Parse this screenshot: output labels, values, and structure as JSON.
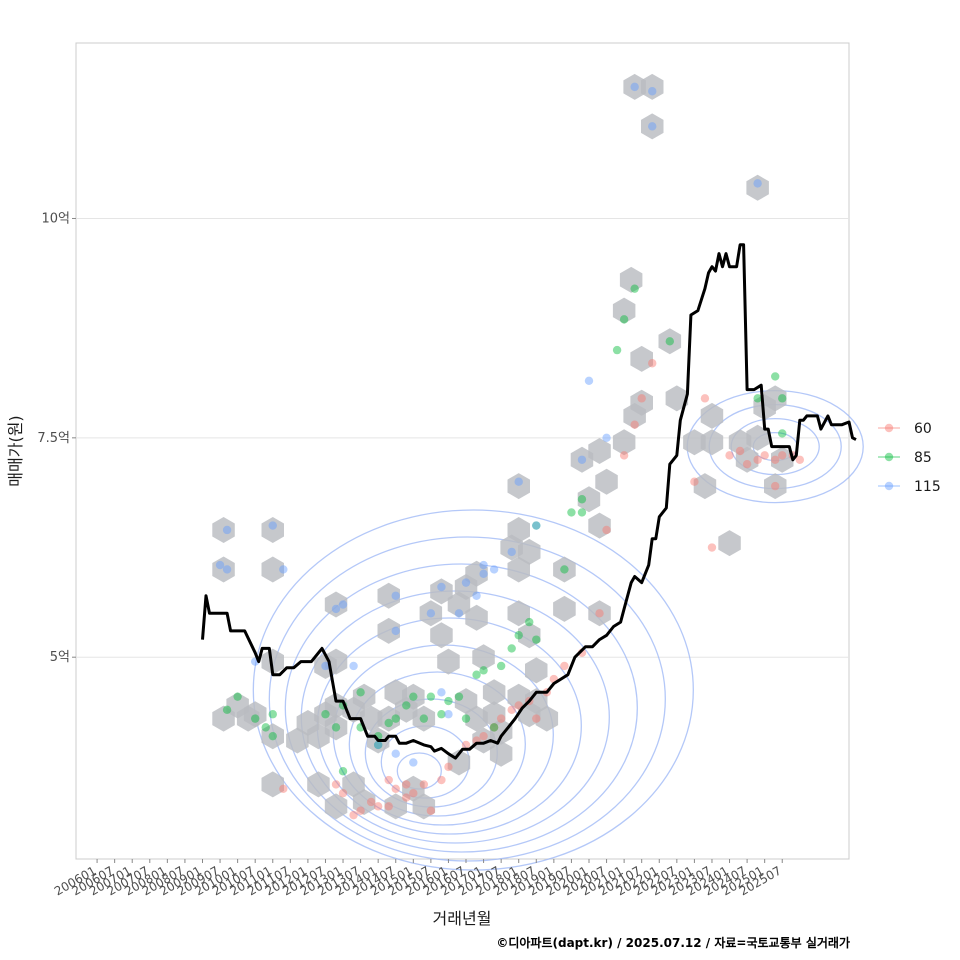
{
  "chart_data": {
    "type": "scatter",
    "title": "",
    "xlabel": "거래년월",
    "ylabel": "매매가(원)",
    "xticks": [
      "200601",
      "200607",
      "200701",
      "200707",
      "200801",
      "200807",
      "200901",
      "200907",
      "201001",
      "201007",
      "201101",
      "201107",
      "201201",
      "201207",
      "201301",
      "201307",
      "201401",
      "201407",
      "201501",
      "201507",
      "201601",
      "201607",
      "201701",
      "201707",
      "201801",
      "201807",
      "201901",
      "201907",
      "202001",
      "202007",
      "202101",
      "202107",
      "202201",
      "202207",
      "202301",
      "202307",
      "202401",
      "202407",
      "202501",
      "202507"
    ],
    "yticks": [
      {
        "value": 5,
        "label": "5억"
      },
      {
        "value": 7.5,
        "label": "7.5억"
      },
      {
        "value": 10,
        "label": "10억"
      }
    ],
    "xlim": [
      2005.4,
      2027.4
    ],
    "ylim": [
      2.7,
      12.0
    ],
    "grid": true,
    "legend_position": "right",
    "legend": [
      {
        "name": "60",
        "color": "#F8766D"
      },
      {
        "name": "85",
        "color": "#00BA38"
      },
      {
        "name": "115",
        "color": "#619CFF"
      }
    ],
    "hexbins": [
      [
        2009.6,
        6.45
      ],
      [
        2009.6,
        6.0
      ],
      [
        2009.6,
        4.3
      ],
      [
        2010.0,
        4.45
      ],
      [
        2010.3,
        4.3
      ],
      [
        2010.5,
        4.35
      ],
      [
        2011.0,
        6.45
      ],
      [
        2011.0,
        6.0
      ],
      [
        2011.0,
        4.95
      ],
      [
        2011.0,
        4.1
      ],
      [
        2011.0,
        3.55
      ],
      [
        2011.7,
        4.05
      ],
      [
        2012.0,
        4.25
      ],
      [
        2012.3,
        4.1
      ],
      [
        2012.5,
        4.35
      ],
      [
        2012.8,
        5.6
      ],
      [
        2012.8,
        4.95
      ],
      [
        2012.5,
        4.9
      ],
      [
        2012.8,
        4.45
      ],
      [
        2012.8,
        4.2
      ],
      [
        2012.3,
        3.55
      ],
      [
        2013.3,
        4.4
      ],
      [
        2013.6,
        4.55
      ],
      [
        2013.8,
        4.3
      ],
      [
        2013.3,
        3.55
      ],
      [
        2013.6,
        3.35
      ],
      [
        2012.8,
        3.3
      ],
      [
        2014.0,
        4.05
      ],
      [
        2014.3,
        4.3
      ],
      [
        2014.3,
        5.7
      ],
      [
        2014.3,
        5.3
      ],
      [
        2014.5,
        4.6
      ],
      [
        2014.8,
        4.4
      ],
      [
        2015.0,
        4.55
      ],
      [
        2015.3,
        4.3
      ],
      [
        2015.0,
        3.5
      ],
      [
        2015.3,
        3.3
      ],
      [
        2014.5,
        3.3
      ],
      [
        2015.5,
        5.5
      ],
      [
        2015.8,
        5.75
      ],
      [
        2015.8,
        5.25
      ],
      [
        2016.0,
        4.95
      ],
      [
        2016.3,
        5.6
      ],
      [
        2016.5,
        5.8
      ],
      [
        2016.8,
        5.95
      ],
      [
        2016.8,
        5.45
      ],
      [
        2017.0,
        5.0
      ],
      [
        2016.5,
        4.5
      ],
      [
        2016.8,
        4.3
      ],
      [
        2016.3,
        3.8
      ],
      [
        2017.3,
        4.6
      ],
      [
        2017.3,
        4.35
      ],
      [
        2017.5,
        4.15
      ],
      [
        2017.0,
        4.05
      ],
      [
        2017.5,
        3.9
      ],
      [
        2017.8,
        6.25
      ],
      [
        2018.0,
        6.45
      ],
      [
        2018.0,
        6.0
      ],
      [
        2018.3,
        6.2
      ],
      [
        2018.0,
        5.5
      ],
      [
        2018.3,
        5.25
      ],
      [
        2018.5,
        4.85
      ],
      [
        2018.0,
        4.55
      ],
      [
        2018.3,
        4.35
      ],
      [
        2018.5,
        4.5
      ],
      [
        2018.8,
        4.3
      ],
      [
        2018.0,
        6.95
      ],
      [
        2019.3,
        6.0
      ],
      [
        2019.3,
        5.55
      ],
      [
        2019.8,
        7.25
      ],
      [
        2020.0,
        6.8
      ],
      [
        2020.3,
        7.35
      ],
      [
        2020.5,
        7.0
      ],
      [
        2020.3,
        6.5
      ],
      [
        2020.3,
        5.5
      ],
      [
        2021.0,
        7.45
      ],
      [
        2021.3,
        7.75
      ],
      [
        2021.5,
        7.9
      ],
      [
        2021.5,
        8.4
      ],
      [
        2021.0,
        8.95
      ],
      [
        2021.2,
        9.3
      ],
      [
        2021.3,
        11.5
      ],
      [
        2021.8,
        11.5
      ],
      [
        2021.8,
        11.05
      ],
      [
        2022.3,
        8.6
      ],
      [
        2022.5,
        7.95
      ],
      [
        2023.0,
        7.45
      ],
      [
        2023.5,
        7.45
      ],
      [
        2023.3,
        6.95
      ],
      [
        2024.0,
        6.3
      ],
      [
        2024.3,
        7.45
      ],
      [
        2024.5,
        7.25
      ],
      [
        2024.8,
        10.35
      ],
      [
        2024.8,
        7.5
      ],
      [
        2025.0,
        7.85
      ],
      [
        2025.3,
        7.95
      ],
      [
        2025.5,
        7.25
      ],
      [
        2025.3,
        6.95
      ],
      [
        2023.5,
        7.75
      ]
    ],
    "series": [
      {
        "name": "60",
        "color": "#F8766D",
        "points": [
          [
            2011.3,
            3.5
          ],
          [
            2012.8,
            3.55
          ],
          [
            2013.0,
            3.45
          ],
          [
            2013.3,
            3.2
          ],
          [
            2013.5,
            3.25
          ],
          [
            2013.8,
            3.35
          ],
          [
            2014.0,
            3.3
          ],
          [
            2014.3,
            3.3
          ],
          [
            2014.5,
            3.5
          ],
          [
            2014.8,
            3.55
          ],
          [
            2015.0,
            3.45
          ],
          [
            2015.3,
            3.55
          ],
          [
            2015.5,
            3.25
          ],
          [
            2015.8,
            3.6
          ],
          [
            2016.0,
            3.75
          ],
          [
            2014.3,
            3.6
          ],
          [
            2014.8,
            3.4
          ],
          [
            2016.5,
            4.0
          ],
          [
            2016.8,
            4.05
          ],
          [
            2017.0,
            4.1
          ],
          [
            2017.3,
            4.2
          ],
          [
            2017.5,
            4.3
          ],
          [
            2017.8,
            4.4
          ],
          [
            2018.0,
            4.45
          ],
          [
            2018.3,
            4.5
          ],
          [
            2018.5,
            4.3
          ],
          [
            2018.8,
            4.6
          ],
          [
            2019.0,
            4.75
          ],
          [
            2019.3,
            4.9
          ],
          [
            2019.8,
            5.05
          ],
          [
            2020.3,
            5.5
          ],
          [
            2020.5,
            6.45
          ],
          [
            2021.0,
            7.3
          ],
          [
            2021.3,
            7.65
          ],
          [
            2021.5,
            7.95
          ],
          [
            2021.8,
            8.35
          ],
          [
            2023.0,
            7.0
          ],
          [
            2023.3,
            7.95
          ],
          [
            2023.5,
            6.25
          ],
          [
            2024.3,
            7.35
          ],
          [
            2024.5,
            7.2
          ],
          [
            2024.8,
            7.25
          ],
          [
            2025.0,
            7.3
          ],
          [
            2025.3,
            7.25
          ],
          [
            2025.5,
            7.3
          ],
          [
            2025.8,
            7.3
          ],
          [
            2026.0,
            7.25
          ],
          [
            2025.3,
            6.95
          ],
          [
            2024.0,
            7.3
          ]
        ]
      },
      {
        "name": "85",
        "color": "#00BA38",
        "points": [
          [
            2009.7,
            4.4
          ],
          [
            2010.0,
            4.55
          ],
          [
            2010.5,
            4.3
          ],
          [
            2010.8,
            4.2
          ],
          [
            2011.0,
            4.1
          ],
          [
            2011.0,
            4.35
          ],
          [
            2012.5,
            4.35
          ],
          [
            2012.8,
            4.2
          ],
          [
            2013.0,
            4.45
          ],
          [
            2013.5,
            4.2
          ],
          [
            2013.5,
            4.6
          ],
          [
            2014.0,
            4.0
          ],
          [
            2014.3,
            4.25
          ],
          [
            2014.5,
            4.3
          ],
          [
            2014.8,
            4.45
          ],
          [
            2015.0,
            4.55
          ],
          [
            2015.3,
            4.3
          ],
          [
            2015.5,
            4.55
          ],
          [
            2015.8,
            4.35
          ],
          [
            2016.0,
            4.5
          ],
          [
            2016.3,
            4.55
          ],
          [
            2016.5,
            4.3
          ],
          [
            2016.8,
            4.8
          ],
          [
            2017.0,
            4.85
          ],
          [
            2017.3,
            4.2
          ],
          [
            2017.5,
            4.9
          ],
          [
            2017.8,
            5.1
          ],
          [
            2018.0,
            5.25
          ],
          [
            2018.3,
            5.4
          ],
          [
            2018.5,
            5.2
          ],
          [
            2018.5,
            6.5
          ],
          [
            2019.3,
            6.0
          ],
          [
            2019.5,
            6.65
          ],
          [
            2019.8,
            6.8
          ],
          [
            2019.8,
            6.65
          ],
          [
            2020.8,
            8.5
          ],
          [
            2021.0,
            8.85
          ],
          [
            2021.3,
            9.2
          ],
          [
            2022.3,
            8.6
          ],
          [
            2024.8,
            7.95
          ],
          [
            2025.3,
            8.2
          ],
          [
            2025.5,
            7.95
          ],
          [
            2025.5,
            7.55
          ],
          [
            2013.0,
            3.7
          ],
          [
            2014.0,
            4.1
          ]
        ]
      },
      {
        "name": "115",
        "color": "#619CFF",
        "points": [
          [
            2009.5,
            6.05
          ],
          [
            2009.7,
            6.45
          ],
          [
            2009.7,
            6.0
          ],
          [
            2010.5,
            4.95
          ],
          [
            2011.0,
            6.5
          ],
          [
            2011.3,
            6.0
          ],
          [
            2012.5,
            4.9
          ],
          [
            2012.8,
            5.55
          ],
          [
            2013.0,
            5.6
          ],
          [
            2013.3,
            4.9
          ],
          [
            2014.0,
            4.0
          ],
          [
            2014.5,
            5.7
          ],
          [
            2014.5,
            5.3
          ],
          [
            2015.5,
            5.5
          ],
          [
            2015.8,
            5.8
          ],
          [
            2016.3,
            5.5
          ],
          [
            2016.5,
            5.85
          ],
          [
            2016.8,
            5.7
          ],
          [
            2017.0,
            5.95
          ],
          [
            2017.0,
            6.05
          ],
          [
            2017.3,
            6.0
          ],
          [
            2017.8,
            6.2
          ],
          [
            2018.0,
            7.0
          ],
          [
            2018.5,
            6.5
          ],
          [
            2019.8,
            7.25
          ],
          [
            2020.0,
            8.15
          ],
          [
            2020.5,
            7.5
          ],
          [
            2021.3,
            11.5
          ],
          [
            2021.8,
            11.45
          ],
          [
            2021.8,
            11.05
          ],
          [
            2024.8,
            10.4
          ],
          [
            2014.5,
            3.9
          ],
          [
            2015.0,
            3.8
          ],
          [
            2015.8,
            4.6
          ],
          [
            2016.0,
            4.35
          ]
        ]
      }
    ],
    "median_line": [
      [
        2009.0,
        5.2
      ],
      [
        2009.1,
        5.7
      ],
      [
        2009.2,
        5.5
      ],
      [
        2009.7,
        5.5
      ],
      [
        2009.8,
        5.3
      ],
      [
        2010.2,
        5.3
      ],
      [
        2010.5,
        5.05
      ],
      [
        2010.6,
        4.95
      ],
      [
        2010.7,
        5.1
      ],
      [
        2010.9,
        5.1
      ],
      [
        2011.0,
        4.8
      ],
      [
        2011.2,
        4.8
      ],
      [
        2011.4,
        4.88
      ],
      [
        2011.6,
        4.88
      ],
      [
        2011.8,
        4.95
      ],
      [
        2012.1,
        4.95
      ],
      [
        2012.4,
        5.1
      ],
      [
        2012.6,
        4.95
      ],
      [
        2012.8,
        4.5
      ],
      [
        2013.0,
        4.5
      ],
      [
        2013.2,
        4.3
      ],
      [
        2013.5,
        4.3
      ],
      [
        2013.7,
        4.1
      ],
      [
        2013.9,
        4.1
      ],
      [
        2014.0,
        4.05
      ],
      [
        2014.2,
        4.05
      ],
      [
        2014.3,
        4.1
      ],
      [
        2014.5,
        4.1
      ],
      [
        2014.6,
        4.02
      ],
      [
        2014.8,
        4.02
      ],
      [
        2015.0,
        4.05
      ],
      [
        2015.3,
        4.0
      ],
      [
        2015.5,
        3.98
      ],
      [
        2015.6,
        3.93
      ],
      [
        2015.8,
        3.96
      ],
      [
        2016.0,
        3.9
      ],
      [
        2016.2,
        3.85
      ],
      [
        2016.4,
        3.95
      ],
      [
        2016.6,
        3.95
      ],
      [
        2016.8,
        4.02
      ],
      [
        2017.0,
        4.02
      ],
      [
        2017.2,
        4.05
      ],
      [
        2017.4,
        4.02
      ],
      [
        2017.5,
        4.1
      ],
      [
        2017.7,
        4.2
      ],
      [
        2017.9,
        4.3
      ],
      [
        2018.1,
        4.42
      ],
      [
        2018.3,
        4.5
      ],
      [
        2018.5,
        4.6
      ],
      [
        2018.8,
        4.6
      ],
      [
        2019.0,
        4.7
      ],
      [
        2019.2,
        4.75
      ],
      [
        2019.4,
        4.8
      ],
      [
        2019.6,
        5.0
      ],
      [
        2019.9,
        5.12
      ],
      [
        2020.1,
        5.12
      ],
      [
        2020.3,
        5.2
      ],
      [
        2020.5,
        5.25
      ],
      [
        2020.7,
        5.35
      ],
      [
        2020.9,
        5.4
      ],
      [
        2021.0,
        5.55
      ],
      [
        2021.2,
        5.85
      ],
      [
        2021.3,
        5.92
      ],
      [
        2021.5,
        5.85
      ],
      [
        2021.7,
        6.05
      ],
      [
        2021.8,
        6.35
      ],
      [
        2021.9,
        6.35
      ],
      [
        2022.0,
        6.6
      ],
      [
        2022.2,
        6.7
      ],
      [
        2022.3,
        7.2
      ],
      [
        2022.5,
        7.3
      ],
      [
        2022.6,
        7.7
      ],
      [
        2022.8,
        8.0
      ],
      [
        2022.9,
        8.9
      ],
      [
        2023.1,
        8.95
      ],
      [
        2023.3,
        9.2
      ],
      [
        2023.4,
        9.38
      ],
      [
        2023.5,
        9.45
      ],
      [
        2023.6,
        9.4
      ],
      [
        2023.7,
        9.6
      ],
      [
        2023.8,
        9.45
      ],
      [
        2023.9,
        9.6
      ],
      [
        2024.0,
        9.45
      ],
      [
        2024.2,
        9.45
      ],
      [
        2024.3,
        9.7
      ],
      [
        2024.4,
        9.7
      ],
      [
        2024.5,
        8.05
      ],
      [
        2024.7,
        8.05
      ],
      [
        2024.9,
        8.1
      ],
      [
        2025.0,
        7.6
      ],
      [
        2025.1,
        7.6
      ],
      [
        2025.2,
        7.4
      ],
      [
        2025.5,
        7.4
      ],
      [
        2025.7,
        7.4
      ],
      [
        2025.8,
        7.25
      ],
      [
        2025.9,
        7.3
      ],
      [
        2026.0,
        7.7
      ],
      [
        2026.1,
        7.7
      ],
      [
        2026.2,
        7.75
      ],
      [
        2026.5,
        7.75
      ],
      [
        2026.6,
        7.6
      ],
      [
        2026.8,
        7.75
      ],
      [
        2026.9,
        7.65
      ],
      [
        2027.0,
        7.65
      ],
      [
        2027.2,
        7.65
      ],
      [
        2027.4,
        7.68
      ],
      [
        2027.5,
        7.5
      ],
      [
        2027.6,
        7.48
      ]
    ],
    "credit": "©디아파트(dapt.kr) / 2025.07.12 / 자료=국토교통부 실거래가"
  }
}
